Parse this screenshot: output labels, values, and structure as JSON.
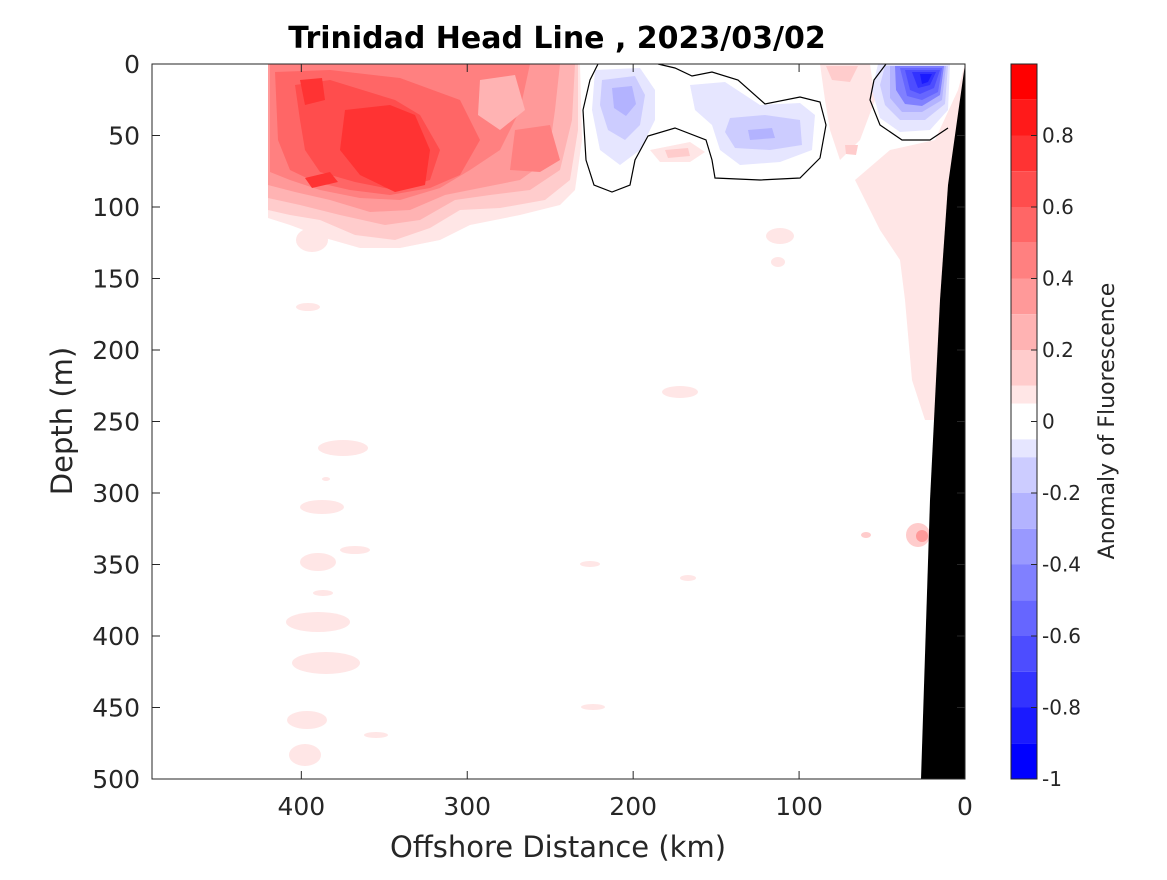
{
  "chart_data": {
    "type": "contour",
    "title": "Trinidad Head Line , 2023/03/02",
    "xlabel": "Offshore Distance (km)",
    "ylabel": "Depth (m)",
    "xlim": [
      490,
      0
    ],
    "ylim": [
      0,
      500
    ],
    "x_reversed": true,
    "y_reversed": true,
    "xticks": [
      400,
      300,
      200,
      100,
      0
    ],
    "yticks": [
      0,
      50,
      100,
      150,
      200,
      250,
      300,
      350,
      400,
      450,
      500
    ],
    "colorbar": {
      "label": "Anomaly of Fluorescence",
      "limits": [
        -1,
        1
      ],
      "ticks": [
        0.8,
        0.6,
        0.4,
        0.2,
        0,
        -0.2,
        -0.4,
        -0.6,
        -0.8,
        -1
      ],
      "levels": [
        -1,
        -0.9,
        -0.8,
        -0.7,
        -0.6,
        -0.5,
        -0.4,
        -0.3,
        -0.2,
        -0.1,
        0,
        0.1,
        0.2,
        0.3,
        0.4,
        0.5,
        0.6,
        0.7,
        0.8,
        0.9,
        1
      ],
      "level_colors": [
        "#0000ff",
        "#1a1aff",
        "#3333ff",
        "#4d4dff",
        "#6666ff",
        "#8080ff",
        "#9999ff",
        "#b3b3ff",
        "#ccccff",
        "#e6e6ff",
        "#ffffff",
        "#ffffff",
        "#ffe6e6",
        "#ffcccc",
        "#ffb3b3",
        "#ff9999",
        "#ff8080",
        "#ff6666",
        "#ff4d4d",
        "#ff3333",
        "#ff1a1a",
        "#ff0000"
      ],
      "tick_labels": [
        "0.8",
        "0.6",
        "0.4",
        "0.2",
        "0",
        "-0.2",
        "-0.4",
        "-0.6",
        "-0.8",
        "-1"
      ]
    },
    "features": [
      {
        "name": "positive-anomaly-offshore",
        "value": 0.8,
        "x_range": [
          420,
          230
        ],
        "depth_range": [
          0,
          110
        ]
      },
      {
        "name": "negative-anomaly-nearshore-surface",
        "value": -0.9,
        "x_range": [
          50,
          10
        ],
        "depth_range": [
          0,
          50
        ]
      },
      {
        "name": "negative-anomaly-midshelf",
        "value": -0.3,
        "x_range": [
          230,
          80
        ],
        "depth_range": [
          0,
          80
        ]
      },
      {
        "name": "weak-positive-shelf-slope",
        "value": 0.1,
        "x_range": [
          60,
          10
        ],
        "depth_range": [
          100,
          250
        ]
      }
    ],
    "bathymetry": {
      "name": "seafloor",
      "color": "#000000"
    }
  }
}
